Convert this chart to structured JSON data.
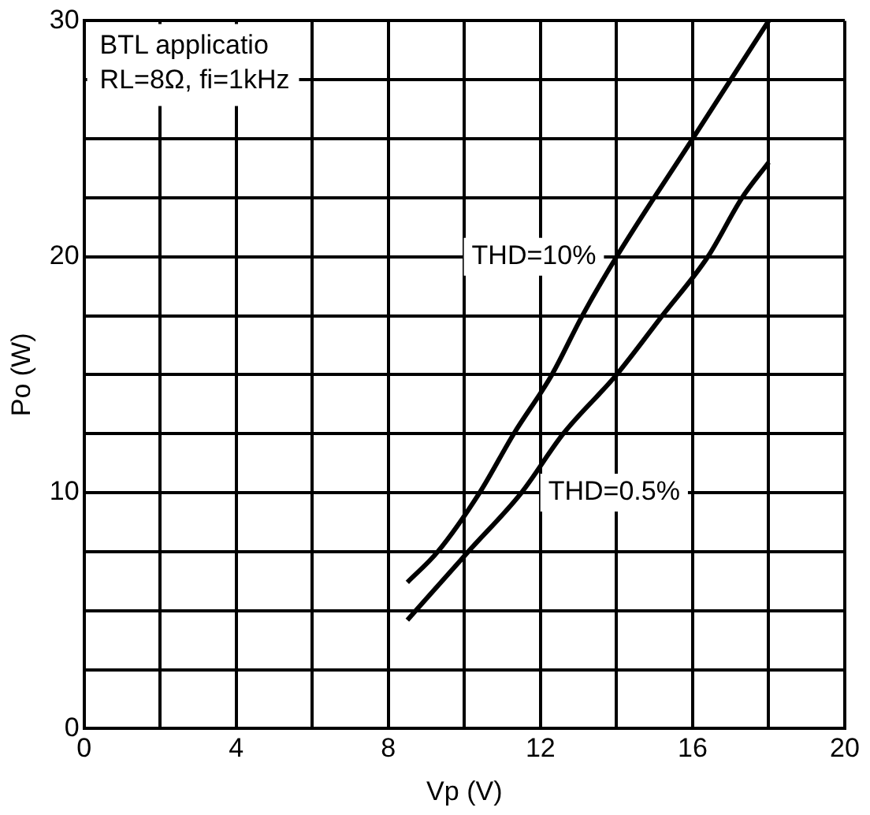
{
  "chart_data": {
    "type": "line",
    "xlabel": "Vp (V)",
    "ylabel": "Po (W)",
    "annotations": [
      "BTL applicatio",
      "RL=8Ω, fi=1kHz"
    ],
    "series": [
      {
        "name": "THD=10%",
        "color": "#000000",
        "x": [
          8.5,
          9.3,
          10.4,
          11.3,
          12.3,
          13.1,
          14,
          16,
          18
        ],
        "values": [
          6.2,
          7.5,
          10,
          12.5,
          15,
          17.5,
          20,
          25,
          30
        ]
      },
      {
        "name": "THD=0.5%",
        "color": "#000000",
        "x": [
          8.5,
          10.1,
          11.5,
          12.6,
          14,
          15.2,
          16.4,
          17.3,
          18
        ],
        "values": [
          4.6,
          7.5,
          10,
          12.5,
          15,
          17.5,
          20,
          22.5,
          24
        ]
      }
    ],
    "xlim": [
      0,
      20
    ],
    "ylim": [
      0,
      30
    ],
    "xticks": [
      0,
      {
        "value": 2,
        "label": null
      },
      4,
      {
        "value": 6,
        "label": null
      },
      8,
      {
        "value": 10,
        "label": null
      },
      12,
      {
        "value": 14,
        "label": null
      },
      16,
      {
        "value": 18,
        "label": null
      },
      20
    ],
    "yticks": [
      0,
      {
        "value": 2.5,
        "label": null
      },
      {
        "value": 5,
        "label": null
      },
      {
        "value": 7.5,
        "label": null
      },
      10,
      {
        "value": 12.5,
        "label": null
      },
      {
        "value": 15,
        "label": null
      },
      {
        "value": 17.5,
        "label": null
      },
      20,
      {
        "value": 22.5,
        "label": null
      },
      {
        "value": 25,
        "label": null
      },
      {
        "value": 27.5,
        "label": null
      },
      30
    ],
    "grid": true,
    "legend": false,
    "marker": "none",
    "line_style": "solid"
  }
}
